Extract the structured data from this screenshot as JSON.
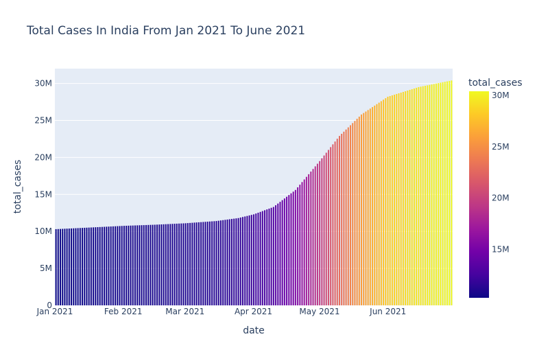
{
  "chart_data": {
    "type": "bar",
    "title": "Total Cases In India From Jan 2021 To June 2021",
    "xlabel": "date",
    "ylabel": "total_cases",
    "x_range": [
      "2021-01-01",
      "2021-06-30"
    ],
    "ylim": [
      0,
      32000000
    ],
    "y_ticks": [
      {
        "value": 0,
        "label": "0"
      },
      {
        "value": 5000000,
        "label": "5M"
      },
      {
        "value": 10000000,
        "label": "10M"
      },
      {
        "value": 15000000,
        "label": "15M"
      },
      {
        "value": 20000000,
        "label": "20M"
      },
      {
        "value": 25000000,
        "label": "25M"
      },
      {
        "value": 30000000,
        "label": "30M"
      }
    ],
    "x_ticks": [
      {
        "value": "2021-01-01",
        "label": "Jan 2021"
      },
      {
        "value": "2021-02-01",
        "label": "Feb 2021"
      },
      {
        "value": "2021-03-01",
        "label": "Mar 2021"
      },
      {
        "value": "2021-04-01",
        "label": "Apr 2021"
      },
      {
        "value": "2021-05-01",
        "label": "May 2021"
      },
      {
        "value": "2021-06-01",
        "label": "Jun 2021"
      }
    ],
    "grid": true,
    "colorbar": {
      "title": "total_cases",
      "range": [
        10300000,
        30400000
      ],
      "ticks": [
        {
          "value": 15000000,
          "label": "15M"
        },
        {
          "value": 20000000,
          "label": "20M"
        },
        {
          "value": 25000000,
          "label": "25M"
        },
        {
          "value": 30000000,
          "label": "30M"
        }
      ],
      "colorscale": [
        "#0d0887",
        "#46039f",
        "#7201a8",
        "#9c179e",
        "#bd3786",
        "#d8576b",
        "#ed7953",
        "#fb9f3a",
        "#fdca26",
        "#f0f921"
      ]
    },
    "series": [
      {
        "x": [
          "2021-01-01",
          "2021-01-15",
          "2021-02-01",
          "2021-02-15",
          "2021-03-01",
          "2021-03-15",
          "2021-03-25",
          "2021-04-01",
          "2021-04-10",
          "2021-04-20",
          "2021-05-01",
          "2021-05-10",
          "2021-05-20",
          "2021-06-01",
          "2021-06-15",
          "2021-06-30"
        ],
        "values": [
          10300000,
          10500000,
          10750000,
          10900000,
          11100000,
          11400000,
          11800000,
          12300000,
          13300000,
          15600000,
          19500000,
          22900000,
          25800000,
          28200000,
          29500000,
          30400000
        ]
      }
    ]
  }
}
